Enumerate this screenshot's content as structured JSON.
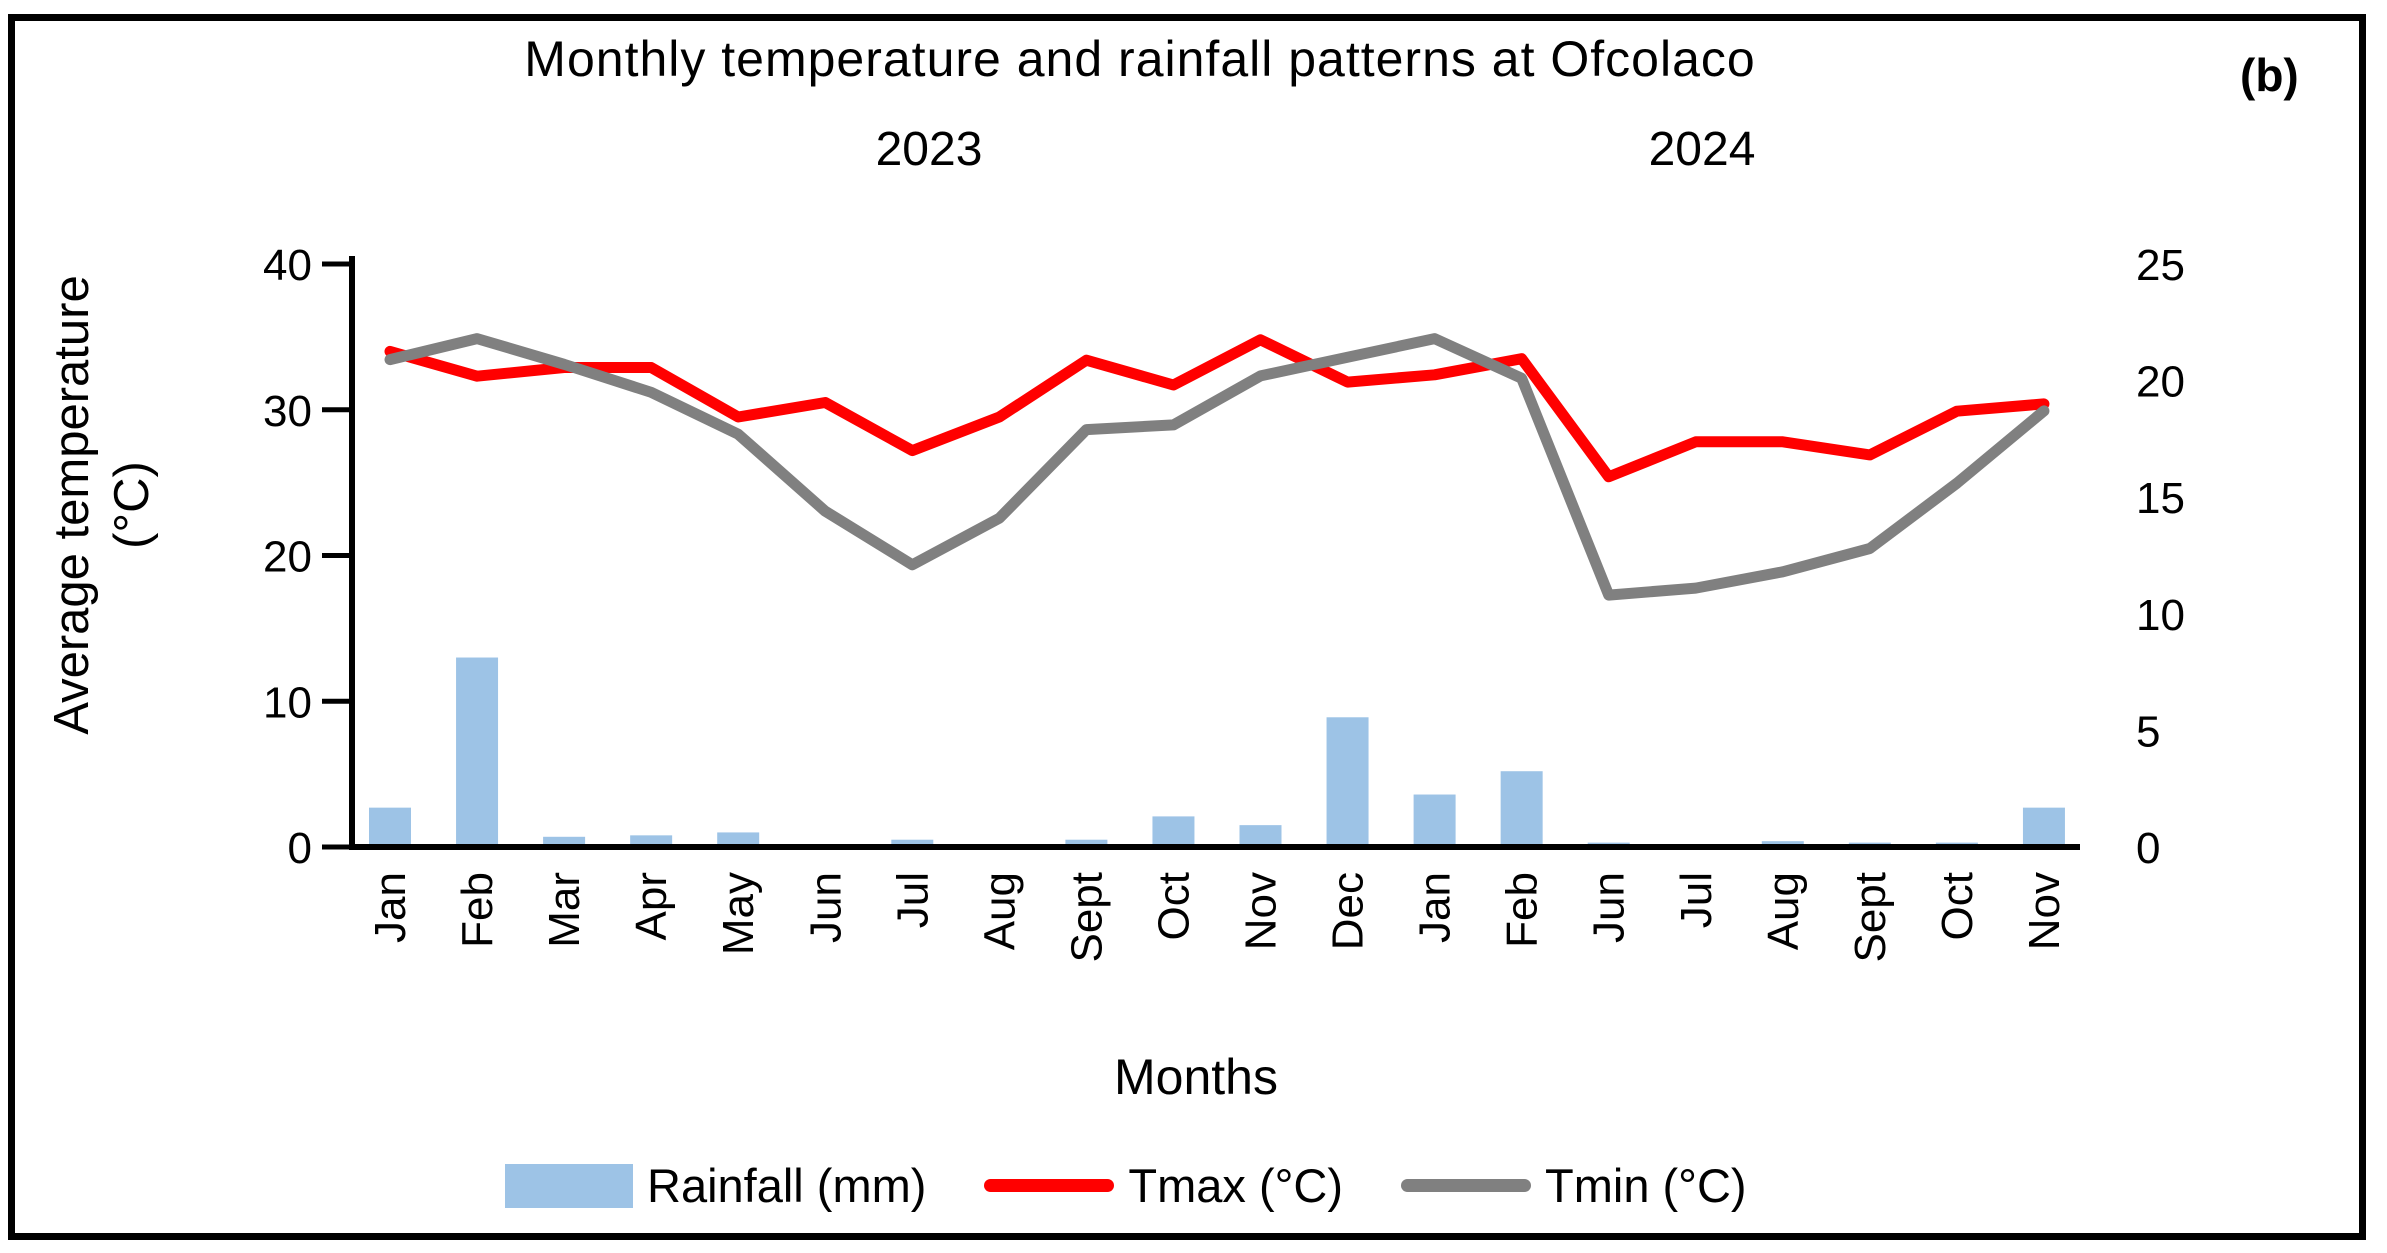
{
  "figure": {
    "title": "Monthly temperature and rainfall patterns at Ofcolaco",
    "panel_label": "(b)",
    "year_label_2023": "2023",
    "year_label_2024": "2024",
    "y_axis_title_line1": "Average temperature",
    "y_axis_title_line2": "(°C)",
    "x_axis_title": "Months"
  },
  "chart_data": {
    "type": "combo-bar-line",
    "title": "Monthly temperature and rainfall patterns at Ofcolaco",
    "xlabel": "Months",
    "ylabel_left": "Average temperature (°C)",
    "categories": [
      "Jan",
      "Feb",
      "Mar",
      "Apr",
      "May",
      "Jun",
      "Jul",
      "Aug",
      "Sept",
      "Oct",
      "Nov",
      "Dec",
      "Jan",
      "Feb",
      "Jun",
      "Jul",
      "Aug",
      "Sept",
      "Oct",
      "Nov"
    ],
    "year_groups": [
      {
        "label": "2023",
        "from_index": 0,
        "to_index": 11
      },
      {
        "label": "2024",
        "from_index": 12,
        "to_index": 19
      }
    ],
    "left_axis": {
      "range": [
        0,
        40
      ],
      "ticks": [
        0,
        10,
        20,
        30,
        40
      ]
    },
    "right_axis": {
      "range": [
        0,
        25
      ],
      "ticks": [
        0,
        5,
        10,
        15,
        20,
        25
      ]
    },
    "grid": "off",
    "legend_position": "bottom",
    "series": [
      {
        "name": "Rainfall (mm)",
        "type": "bar",
        "axis": "left",
        "color": "#9DC3E6",
        "values": [
          2.7,
          13.0,
          0.7,
          0.8,
          1.0,
          0,
          0.5,
          0,
          0.5,
          2.1,
          1.5,
          8.9,
          3.6,
          5.2,
          0.3,
          0,
          0.4,
          0.3,
          0.3,
          2.7
        ]
      },
      {
        "name": "Tmax (°C)",
        "type": "line",
        "axis": "left",
        "color": "#FF0000",
        "values": [
          34.0,
          32.3,
          32.9,
          32.9,
          29.5,
          30.5,
          27.2,
          29.5,
          33.4,
          31.7,
          34.8,
          31.9,
          32.4,
          33.5,
          25.4,
          27.8,
          27.8,
          26.9,
          29.9,
          30.4
        ]
      },
      {
        "name": "Tmin (°C)",
        "type": "line",
        "axis": "right",
        "color": "#808080",
        "values": [
          20.9,
          21.8,
          20.7,
          19.5,
          17.7,
          14.4,
          12.1,
          14.1,
          17.9,
          18.1,
          20.2,
          21.0,
          21.8,
          20.1,
          10.8,
          11.1,
          11.8,
          12.8,
          15.6,
          18.7
        ]
      }
    ]
  }
}
